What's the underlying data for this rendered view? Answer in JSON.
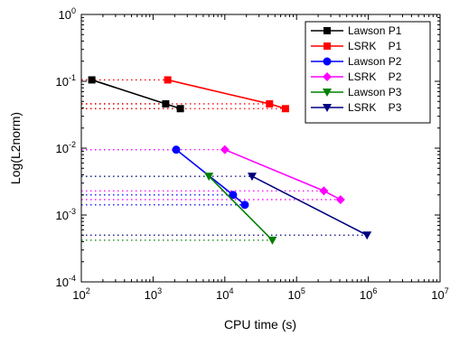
{
  "chart_data": {
    "type": "line",
    "xlabel": "CPU time (s)",
    "ylabel": "Log(L2norm)",
    "xscale": "log",
    "yscale": "log",
    "xlim": [
      100,
      10000000
    ],
    "ylim": [
      0.0001,
      1
    ],
    "x_ticks": [
      {
        "base": "10",
        "exp": "2",
        "value": 100
      },
      {
        "base": "10",
        "exp": "3",
        "value": 1000
      },
      {
        "base": "10",
        "exp": "4",
        "value": 10000
      },
      {
        "base": "10",
        "exp": "5",
        "value": 100000
      },
      {
        "base": "10",
        "exp": "6",
        "value": 1000000
      },
      {
        "base": "10",
        "exp": "7",
        "value": 10000000
      }
    ],
    "y_ticks": [
      {
        "base": "10",
        "exp": "-4",
        "value": 0.0001
      },
      {
        "base": "10",
        "exp": "-3",
        "value": 0.001
      },
      {
        "base": "10",
        "exp": "-2",
        "value": 0.01
      },
      {
        "base": "10",
        "exp": "-1",
        "value": 0.1
      },
      {
        "base": "10",
        "exp": "0",
        "value": 1
      }
    ],
    "grid": false,
    "legend_position": "top-right",
    "reference_lines": "dotted horizontal line from the left axis to each data point, in the series color",
    "series": [
      {
        "name": "Lawson P1",
        "color": "#000000",
        "marker": "square",
        "x": [
          140,
          1500,
          2400
        ],
        "y": [
          0.105,
          0.046,
          0.039
        ]
      },
      {
        "name": "LSRK    P1",
        "color": "#ff0000",
        "marker": "square",
        "x": [
          1600,
          42000,
          70000
        ],
        "y": [
          0.105,
          0.046,
          0.039
        ]
      },
      {
        "name": "Lawson P2",
        "color": "#0000ff",
        "marker": "circle",
        "x": [
          2100,
          13000,
          19000
        ],
        "y": [
          0.0095,
          0.002,
          0.00142
        ]
      },
      {
        "name": "LSRK    P2",
        "color": "#ff00ff",
        "marker": "diamond",
        "x": [
          10000,
          240000,
          410000
        ],
        "y": [
          0.0095,
          0.0023,
          0.0017
        ]
      },
      {
        "name": "Lawson P3",
        "color": "#008000",
        "marker": "triangle-down",
        "x": [
          6000,
          46000
        ],
        "y": [
          0.0038,
          0.00042
        ]
      },
      {
        "name": "LSRK    P3",
        "color": "#000080",
        "marker": "triangle-down",
        "x": [
          24000,
          960000
        ],
        "y": [
          0.0038,
          0.0005
        ]
      }
    ]
  }
}
